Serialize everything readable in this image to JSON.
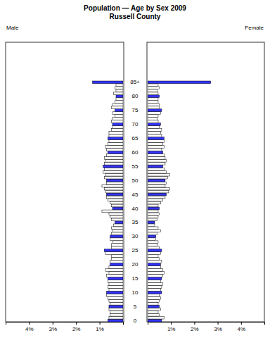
{
  "chart_data": {
    "type": "bar",
    "orientation": "horizontal",
    "title": "Population — Age by Sex 2009",
    "subtitle": "Russell County",
    "categories": [
      "0",
      null,
      null,
      null,
      null,
      "5",
      null,
      null,
      null,
      null,
      "10",
      null,
      null,
      null,
      null,
      "15",
      null,
      null,
      null,
      null,
      "20",
      null,
      null,
      null,
      null,
      "25",
      null,
      null,
      null,
      null,
      "30",
      null,
      null,
      null,
      null,
      "35",
      null,
      null,
      null,
      null,
      "40",
      null,
      null,
      null,
      null,
      "45",
      null,
      null,
      null,
      null,
      "50",
      null,
      null,
      null,
      null,
      "55",
      null,
      null,
      null,
      null,
      "60",
      null,
      null,
      null,
      null,
      "65",
      null,
      null,
      null,
      null,
      "70",
      null,
      null,
      null,
      null,
      "75",
      null,
      null,
      null,
      null,
      "80",
      null,
      null,
      null,
      null,
      "85+"
    ],
    "xlim": [
      0,
      5
    ],
    "xticks": [
      {
        "value": 1,
        "label": "1%"
      },
      {
        "value": 2,
        "label": "2%"
      },
      {
        "value": 3,
        "label": "3%"
      },
      {
        "value": 4,
        "label": "4%"
      }
    ],
    "series": [
      {
        "name": "Male",
        "values": [
          0.65,
          0.6,
          0.55,
          0.55,
          0.6,
          0.6,
          0.55,
          0.6,
          0.65,
          0.7,
          0.7,
          0.6,
          0.65,
          0.6,
          0.65,
          0.65,
          0.7,
          0.6,
          0.75,
          0.6,
          0.55,
          0.55,
          0.5,
          0.5,
          0.75,
          0.8,
          0.5,
          0.5,
          0.45,
          0.55,
          0.55,
          0.5,
          0.45,
          0.5,
          0.4,
          0.35,
          0.5,
          0.55,
          0.6,
          0.9,
          0.45,
          0.5,
          0.55,
          0.65,
          0.7,
          0.7,
          0.75,
          0.8,
          0.9,
          0.7,
          0.7,
          0.8,
          0.75,
          0.85,
          0.8,
          0.85,
          0.8,
          0.75,
          0.8,
          0.7,
          0.65,
          0.7,
          0.75,
          0.65,
          0.6,
          0.65,
          0.6,
          0.6,
          0.5,
          0.45,
          0.45,
          0.5,
          0.45,
          0.35,
          0.45,
          0.35,
          0.5,
          0.45,
          0.35,
          0.3,
          0.3,
          0.4,
          0.3,
          0.35,
          0.3,
          1.3
        ],
        "colors": [
          "#3333ff",
          "#ffffff",
          "#ffffff",
          "#ffffff",
          "#ffffff",
          "#3333ff",
          "#ffffff",
          "#ffffff",
          "#ffffff",
          "#ffffff",
          "#3333ff",
          "#ffffff",
          "#ffffff",
          "#ffffff",
          "#ffffff",
          "#3333ff",
          "#ffffff",
          "#ffffff",
          "#ffffff",
          "#ffffff",
          "#3333ff",
          "#ffffff",
          "#ffffff",
          "#ffffff",
          "#ffffff",
          "#3333ff",
          "#ffffff",
          "#ffffff",
          "#ffffff",
          "#ffffff",
          "#3333ff",
          "#ffffff",
          "#ffffff",
          "#ffffff",
          "#ffffff",
          "#3333ff",
          "#ffffff",
          "#ffffff",
          "#ffffff",
          "#ffffff",
          "#3333ff",
          "#ffffff",
          "#ffffff",
          "#ffffff",
          "#ffffff",
          "#3333ff",
          "#ffffff",
          "#ffffff",
          "#ffffff",
          "#ffffff",
          "#3333ff",
          "#ffffff",
          "#ffffff",
          "#ffffff",
          "#ffffff",
          "#3333ff",
          "#ffffff",
          "#ffffff",
          "#ffffff",
          "#ffffff",
          "#3333ff",
          "#ffffff",
          "#ffffff",
          "#ffffff",
          "#ffffff",
          "#3333ff",
          "#ffffff",
          "#ffffff",
          "#ffffff",
          "#ffffff",
          "#3333ff",
          "#ffffff",
          "#ffffff",
          "#ffffff",
          "#ffffff",
          "#3333ff",
          "#ffffff",
          "#ffffff",
          "#ffffff",
          "#ffffff",
          "#3333ff",
          "#ffffff",
          "#ffffff",
          "#ffffff",
          "#ffffff",
          "#3333ff"
        ]
      },
      {
        "name": "Female",
        "values": [
          0.6,
          0.7,
          0.5,
          0.45,
          0.55,
          0.5,
          0.45,
          0.5,
          0.55,
          0.5,
          0.6,
          0.55,
          0.6,
          0.65,
          0.55,
          0.6,
          0.65,
          0.7,
          0.65,
          0.55,
          0.55,
          0.6,
          0.5,
          0.45,
          0.55,
          0.6,
          0.5,
          0.4,
          0.45,
          0.35,
          0.35,
          0.4,
          0.55,
          0.45,
          0.3,
          0.3,
          0.4,
          0.45,
          0.5,
          0.45,
          0.5,
          0.45,
          0.55,
          0.65,
          0.75,
          0.8,
          0.9,
          0.95,
          0.75,
          0.8,
          0.75,
          0.85,
          0.95,
          0.8,
          0.7,
          0.65,
          0.75,
          0.8,
          0.75,
          0.7,
          0.65,
          0.6,
          0.7,
          0.65,
          0.7,
          0.7,
          0.6,
          0.55,
          0.6,
          0.5,
          0.55,
          0.45,
          0.4,
          0.45,
          0.55,
          0.6,
          0.5,
          0.5,
          0.45,
          0.45,
          0.5,
          0.45,
          0.4,
          0.5,
          0.45,
          2.7
        ],
        "colors": [
          "#3333ff",
          "#ffffff",
          "#ffffff",
          "#ffffff",
          "#ffffff",
          "#3333ff",
          "#ffffff",
          "#ffffff",
          "#ffffff",
          "#ffffff",
          "#3333ff",
          "#ffffff",
          "#ffffff",
          "#ffffff",
          "#ffffff",
          "#3333ff",
          "#ffffff",
          "#ffffff",
          "#ffffff",
          "#ffffff",
          "#3333ff",
          "#ffffff",
          "#ffffff",
          "#ffffff",
          "#ffffff",
          "#3333ff",
          "#ffffff",
          "#ffffff",
          "#ffffff",
          "#ffffff",
          "#3333ff",
          "#ffffff",
          "#ffffff",
          "#ffffff",
          "#ffffff",
          "#3333ff",
          "#ffffff",
          "#ffffff",
          "#ffffff",
          "#ffffff",
          "#3333ff",
          "#ffffff",
          "#ffffff",
          "#ffffff",
          "#ffffff",
          "#3333ff",
          "#ffffff",
          "#ffffff",
          "#ffffff",
          "#ffffff",
          "#3333ff",
          "#ffffff",
          "#ffffff",
          "#ffffff",
          "#ffffff",
          "#3333ff",
          "#ffffff",
          "#ffffff",
          "#ffffff",
          "#ffffff",
          "#3333ff",
          "#ffffff",
          "#ffffff",
          "#ffffff",
          "#ffffff",
          "#3333ff",
          "#ffffff",
          "#ffffff",
          "#ffffff",
          "#ffffff",
          "#3333ff",
          "#ffffff",
          "#ffffff",
          "#ffffff",
          "#ffffff",
          "#3333ff",
          "#ffffff",
          "#ffffff",
          "#ffffff",
          "#ffffff",
          "#3333ff",
          "#ffffff",
          "#ffffff",
          "#ffffff",
          "#ffffff",
          "#3333ff"
        ]
      }
    ]
  }
}
